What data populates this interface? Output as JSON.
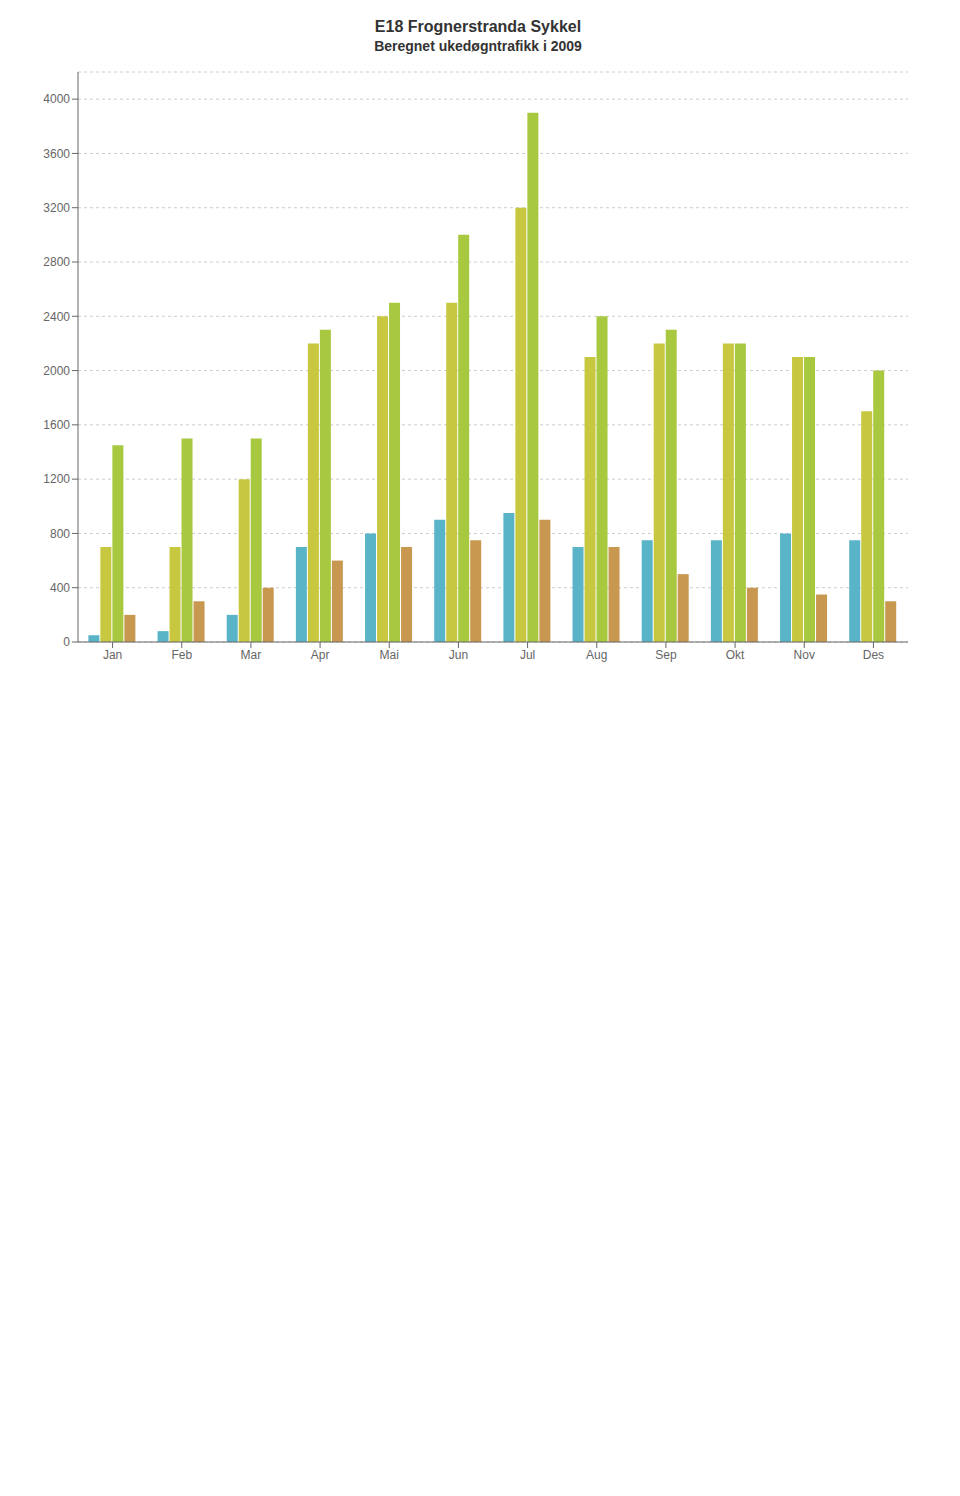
{
  "chart_data": {
    "type": "bar",
    "title": "E18 Frognerstranda Sykkel",
    "subtitle": "Beregnet ukedøgntrafikk i 2009",
    "categories": [
      "Jan",
      "Feb",
      "Mar",
      "Apr",
      "Mai",
      "Jun",
      "Jul",
      "Aug",
      "Sep",
      "Okt",
      "Nov",
      "Des"
    ],
    "series": [
      {
        "color": "#5ab4c8",
        "values": [
          50,
          80,
          200,
          700,
          800,
          900,
          950,
          700,
          750,
          750,
          800,
          750
        ]
      },
      {
        "color": "#c8c840",
        "values": [
          700,
          700,
          1200,
          2200,
          2400,
          2500,
          3200,
          2100,
          2200,
          2200,
          2100,
          1700
        ]
      },
      {
        "color": "#a8c840",
        "values": [
          1450,
          1500,
          1500,
          2300,
          2500,
          3000,
          3900,
          2400,
          2300,
          2200,
          2100,
          2000
        ]
      },
      {
        "color": "#c89850",
        "values": [
          200,
          300,
          400,
          600,
          700,
          750,
          900,
          700,
          500,
          400,
          350,
          300
        ]
      }
    ],
    "ylim": [
      0,
      4200
    ],
    "yticks": [
      0,
      400,
      800,
      1200,
      1600,
      2000,
      2400,
      2800,
      3200,
      3600,
      4000
    ],
    "grid": true
  }
}
